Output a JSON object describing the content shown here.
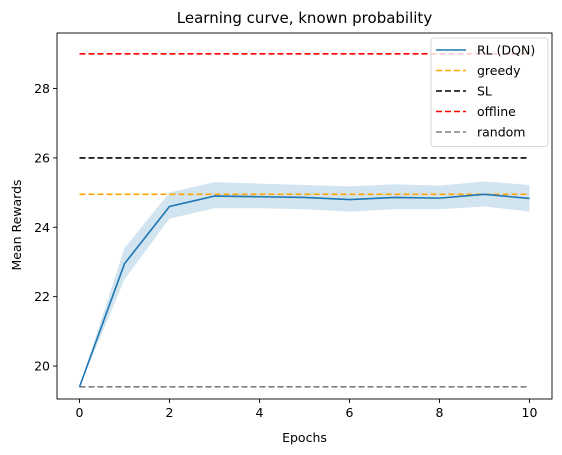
{
  "chart_data": {
    "type": "line",
    "title": "Learning curve, known probability",
    "xlabel": "Epochs",
    "ylabel": "Mean Rewards",
    "xlim": [
      -0.5,
      10.5
    ],
    "ylim": [
      19.05,
      29.6
    ],
    "xticks": [
      0,
      2,
      4,
      6,
      8,
      10
    ],
    "yticks": [
      20,
      22,
      24,
      26,
      28
    ],
    "grid": false,
    "legend_position": "top-right",
    "series": [
      {
        "name": "RL (DQN)",
        "style": "solid",
        "color": "#1f77b4",
        "x": [
          0,
          1,
          2,
          3,
          4,
          5,
          6,
          7,
          8,
          9,
          10
        ],
        "y": [
          19.4,
          22.95,
          24.6,
          24.9,
          24.88,
          24.86,
          24.8,
          24.86,
          24.84,
          24.95,
          24.83
        ],
        "band_lower": [
          19.4,
          22.5,
          24.25,
          24.55,
          24.55,
          24.52,
          24.45,
          24.52,
          24.52,
          24.6,
          24.45
        ],
        "band_upper": [
          19.4,
          23.4,
          25.0,
          25.3,
          25.26,
          25.22,
          25.18,
          25.24,
          25.2,
          25.32,
          25.22
        ],
        "band_color": "#1f77b4"
      },
      {
        "name": "greedy",
        "style": "dashed",
        "color": "#ffa500",
        "x": [
          0,
          10
        ],
        "y": [
          24.95,
          24.95
        ]
      },
      {
        "name": "SL",
        "style": "dashed",
        "color": "#000000",
        "x": [
          0,
          10
        ],
        "y": [
          26.0,
          26.0
        ]
      },
      {
        "name": "offline",
        "style": "dashed",
        "color": "#ff0000",
        "x": [
          0,
          10
        ],
        "y": [
          29.0,
          29.0
        ]
      },
      {
        "name": "random",
        "style": "dashed",
        "color": "#808080",
        "x": [
          0,
          10
        ],
        "y": [
          19.4,
          19.4
        ]
      }
    ]
  }
}
